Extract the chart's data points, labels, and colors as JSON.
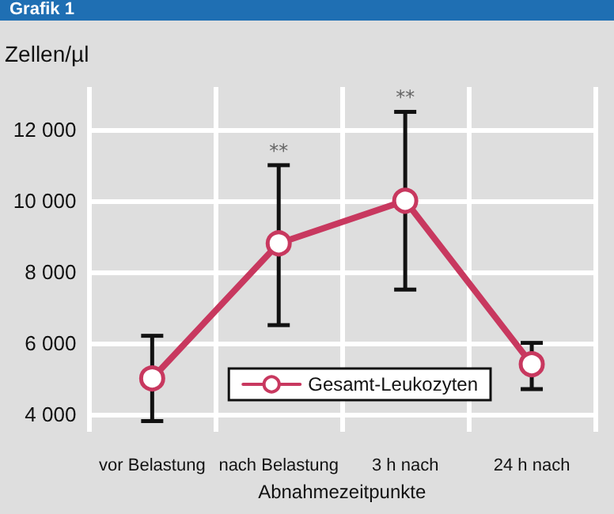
{
  "chart_data": {
    "type": "line",
    "title": "Grafik 1",
    "xlabel": "Abnahmezeitpunkte",
    "ylabel": "Zellen/µl",
    "categories": [
      "vor Belastung",
      "nach Belastung",
      "3 h nach",
      "24 h nach"
    ],
    "series": [
      {
        "name": "Gesamt-Leukozyten",
        "color": "#c8385f",
        "values": [
          5000,
          8800,
          10000,
          5400
        ],
        "errors": [
          [
            3800,
            6200
          ],
          [
            6500,
            11000
          ],
          [
            7500,
            12500
          ],
          [
            4700,
            6000
          ]
        ]
      }
    ],
    "ylim": [
      3500,
      13200
    ],
    "yticks": [
      {
        "value": 4000,
        "label": "4 000"
      },
      {
        "value": 6000,
        "label": "6 000"
      },
      {
        "value": 8000,
        "label": "8 000"
      },
      {
        "value": 10000,
        "label": "10 000"
      },
      {
        "value": 12000,
        "label": "12 000"
      }
    ],
    "annotations": [
      {
        "text": "**",
        "x": "nach Belastung",
        "y": 11000
      },
      {
        "text": "**",
        "x": "3 h nach",
        "y": 12500
      }
    ],
    "grid": true,
    "legend": "bottom right",
    "marker": "circle",
    "line_style": "solid"
  }
}
